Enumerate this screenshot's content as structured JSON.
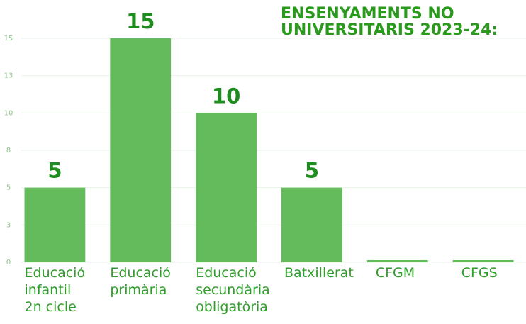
{
  "chart_data": {
    "type": "bar",
    "title": "ENSENYAMENTS NO\nUNIVERSITARIS 2023-24:",
    "categories": [
      "Educació\ninfantil\n2n cicle",
      "Educació\nprimària",
      "Educació\nsecundària\nobligatòria",
      "Batxillerat",
      "CFGM",
      "CFGS"
    ],
    "values": [
      5,
      15,
      10,
      5,
      0,
      0
    ],
    "color": "#63bb5b",
    "ylim": [
      0,
      15
    ],
    "yticks": [
      0,
      {
        "value": 2.5,
        "label": "3"
      },
      5,
      {
        "value": 7.5,
        "label": "8"
      },
      10,
      {
        "value": 12.5,
        "label": "13"
      },
      15
    ],
    "grid": true
  }
}
